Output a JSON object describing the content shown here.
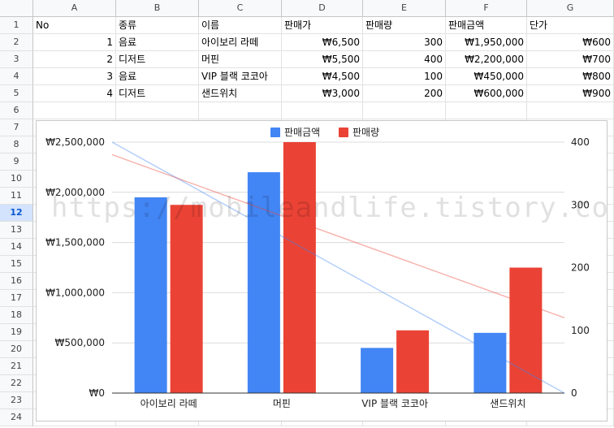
{
  "columns": [
    "A",
    "B",
    "C",
    "D",
    "E",
    "F",
    "G"
  ],
  "rows": [
    "1",
    "2",
    "3",
    "4",
    "5",
    "6",
    "7",
    "8",
    "9",
    "10",
    "11",
    "12",
    "13",
    "14",
    "15",
    "16",
    "17",
    "18",
    "19",
    "20",
    "21",
    "22",
    "23",
    "24"
  ],
  "selected_row": "12",
  "table": {
    "headers": [
      "No",
      "종류",
      "이름",
      "판매가",
      "판매량",
      "판매금액",
      "단가"
    ],
    "records": [
      [
        "1",
        "음료",
        "아이보리 라떼",
        "₩6,500",
        "300",
        "₩1,950,000",
        "₩600"
      ],
      [
        "2",
        "디저트",
        "머핀",
        "₩5,500",
        "400",
        "₩2,200,000",
        "₩700"
      ],
      [
        "3",
        "음료",
        " VIP 블랙 코코아",
        "₩4,500",
        "100",
        "₩450,000",
        "₩800"
      ],
      [
        "4",
        "디저트",
        "샌드위치",
        "₩3,000",
        "200",
        "₩600,000",
        "₩900"
      ]
    ]
  },
  "colors": {
    "sales_amount": "#4285f4",
    "sales_qty": "#ea4335"
  },
  "watermark": "https://mobileandlife.tistory.com/",
  "chart_data": {
    "type": "bar",
    "categories": [
      "아이보리 라떼",
      "머핀",
      "VIP 블랙 코코아",
      "샌드위치"
    ],
    "series": [
      {
        "name": "판매금액",
        "values": [
          1950000,
          2200000,
          450000,
          600000
        ],
        "axis": "left",
        "color": "#4285f4"
      },
      {
        "name": "판매량",
        "values": [
          300,
          400,
          100,
          200
        ],
        "axis": "right",
        "color": "#ea4335"
      }
    ],
    "left_axis": {
      "ylim": [
        0,
        2500000
      ],
      "ticks": [
        "₩0",
        "₩500,000",
        "₩1,000,000",
        "₩1,500,000",
        "₩2,000,000",
        "₩2,500,000"
      ]
    },
    "right_axis": {
      "ylim": [
        0,
        400
      ],
      "ticks": [
        "0",
        "100",
        "200",
        "300",
        "400"
      ]
    },
    "trendlines": [
      {
        "series": "판매금액",
        "start": 2500000,
        "end": 0
      },
      {
        "series": "판매량",
        "start": 380,
        "end": 120
      }
    ],
    "legend": "top",
    "grid": true
  }
}
